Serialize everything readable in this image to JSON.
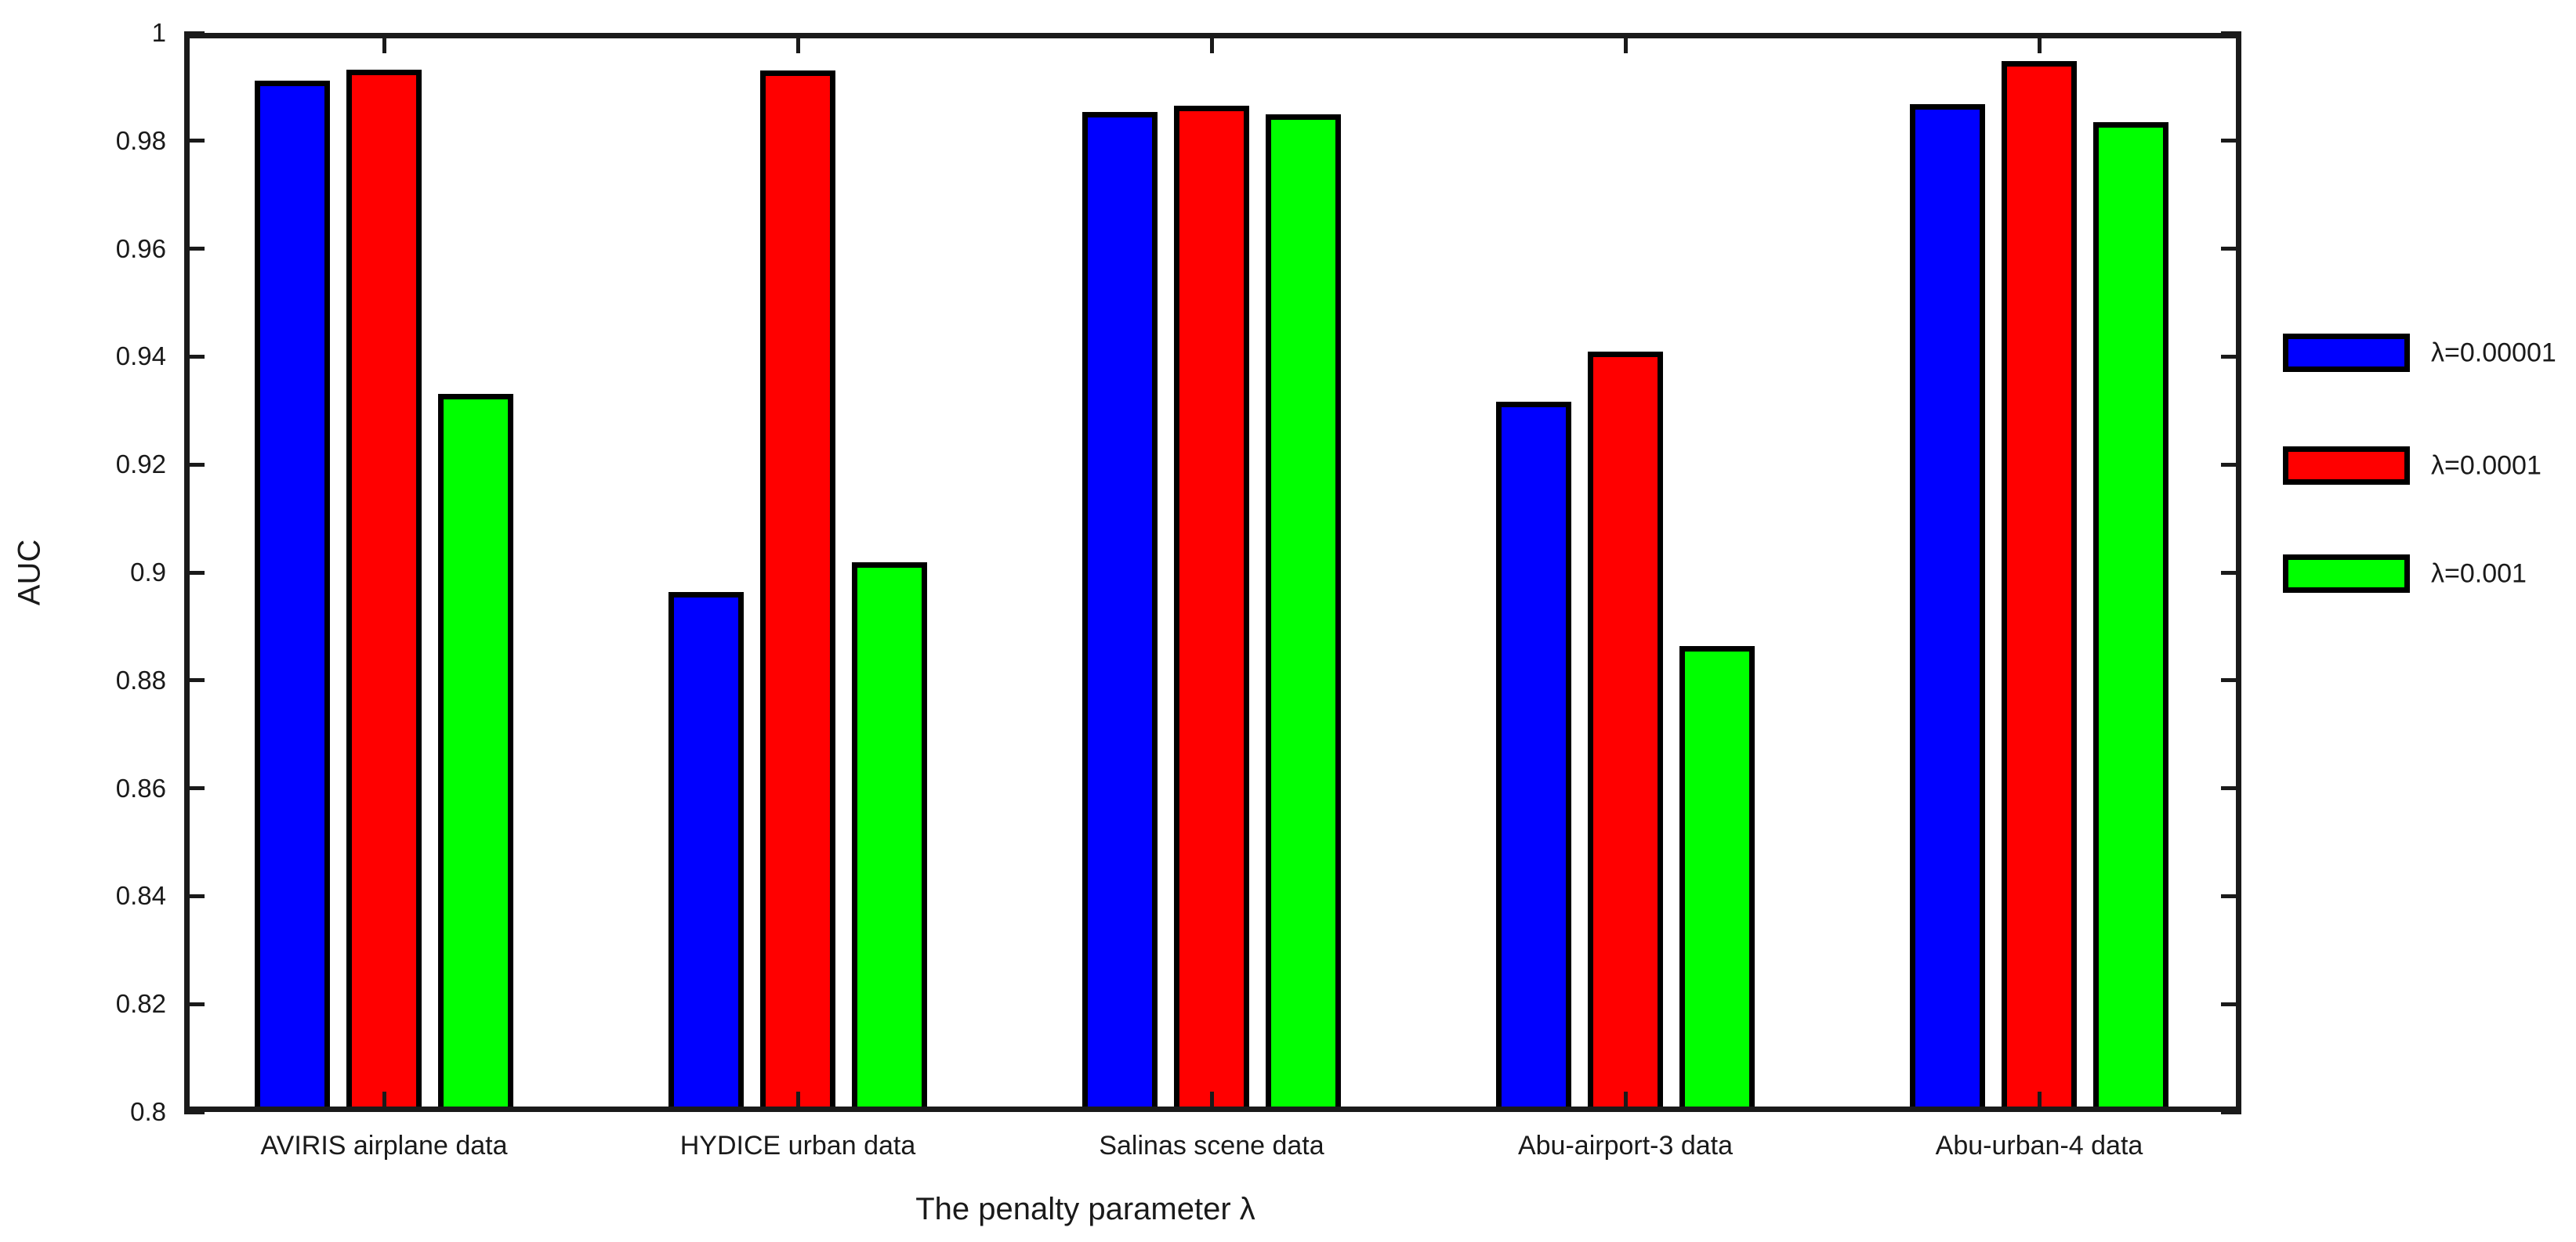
{
  "chart_data": {
    "type": "bar",
    "xlabel": "The penalty parameter λ",
    "ylabel": "AUC",
    "categories": [
      "AVIRIS airplane data",
      "HYDICE urban data",
      "Salinas scene data",
      "Abu-airport-3 data",
      "Abu-urban-4 data"
    ],
    "series": [
      {
        "name": "λ=0.00001",
        "color": "#0000ff",
        "values": [
          0.9911,
          0.8964,
          0.9853,
          0.9316,
          0.9868
        ]
      },
      {
        "name": "λ=0.0001",
        "color": "#ff0000",
        "values": [
          0.9932,
          0.9931,
          0.9865,
          0.9409,
          0.9948
        ]
      },
      {
        "name": "λ=0.001",
        "color": "#00ff00",
        "values": [
          0.9331,
          0.9019,
          0.9849,
          0.8864,
          0.9835
        ]
      }
    ],
    "ylim": [
      0.8,
      1.0
    ],
    "ytick_step": 0.02,
    "ytick_labels": [
      "0.8",
      "0.82",
      "0.84",
      "0.86",
      "0.88",
      "0.9",
      "0.92",
      "0.94",
      "0.96",
      "0.98",
      "1"
    ],
    "grid": false,
    "legend_position": "right-outside",
    "bar_edge_color": "#000000",
    "axis_color": "#1a1a1a",
    "background_color": "#ffffff"
  },
  "legend": {
    "items": [
      {
        "label": "λ=0.00001",
        "color": "#0000ff"
      },
      {
        "label": "λ=0.0001",
        "color": "#ff0000"
      },
      {
        "label": "λ=0.001",
        "color": "#00ff00"
      }
    ]
  }
}
